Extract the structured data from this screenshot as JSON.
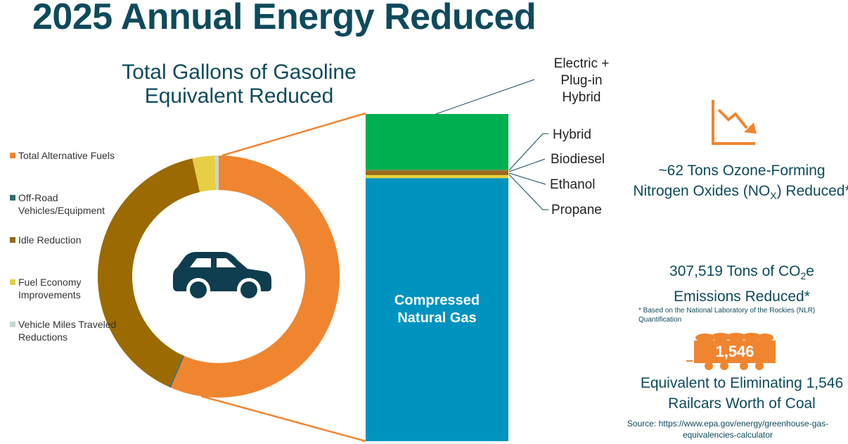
{
  "title": "2025 Annual Energy Reduced",
  "chart_data": [
    {
      "type": "pie",
      "title": "Total Gallons of Gasoline Equivalent Reduced",
      "categories": [
        "Total Alternative Fuels",
        "Off-Road Vehicles/Equipment",
        "Idle Reduction",
        "Fuel Economy Improvements",
        "Vehicle Miles Traveled Reductions"
      ],
      "values": [
        56.5,
        0.2,
        39.8,
        3.0,
        0.5
      ],
      "colors": [
        "#f08530",
        "#2e6e6e",
        "#9b6a00",
        "#e6cf45",
        "#c5d8d4"
      ],
      "legend_position": "left",
      "center_icon": "car-icon"
    },
    {
      "type": "bar",
      "stacked": true,
      "categories": [
        "Compressed Natural Gas",
        "Propane",
        "Ethanol",
        "Biodiesel",
        "Hybrid",
        "Electric + Plug-in Hybrid"
      ],
      "values": [
        80.4,
        1.0,
        0.3,
        1.0,
        0.3,
        17.0
      ],
      "colors": [
        "#0093c0",
        "#e9d040",
        "#7a4f00",
        "#a0691c",
        "#6f8f4f",
        "#00b050"
      ]
    }
  ],
  "labels": {
    "electric": "Electric +\nPlug-in\nHybrid",
    "hybrid": "Hybrid",
    "biodiesel": "Biodiesel",
    "ethanol": "Ethanol",
    "propane": "Propane",
    "cng": "Compressed\nNatural Gas"
  },
  "stats": {
    "nox_prefix": "~62 Tons Ozone-Forming Nitrogen Oxides (NO",
    "nox_sub": "X",
    "nox_suffix": ") Reduced*",
    "co2_prefix": "307,519 Tons of CO",
    "co2_sub": "2",
    "co2_suffix": "e Emissions Reduced*",
    "footnote": "* Based on the National Laboratory of the Rockies (NLR) Quantification",
    "railcars_value": "1,546",
    "railcars_text": "Equivalent to Eliminating 1,546 Railcars Worth of Coal",
    "source": "Source: https://www.epa.gov/energy/greenhouse-gas-equivalencies-calculator"
  },
  "icons": {
    "trend": "downward-trend-icon",
    "train": "coal-railcar-icon"
  },
  "colors": {
    "heading": "#0e4a5c",
    "accent": "#f08530",
    "car": "#0e3d4f"
  }
}
